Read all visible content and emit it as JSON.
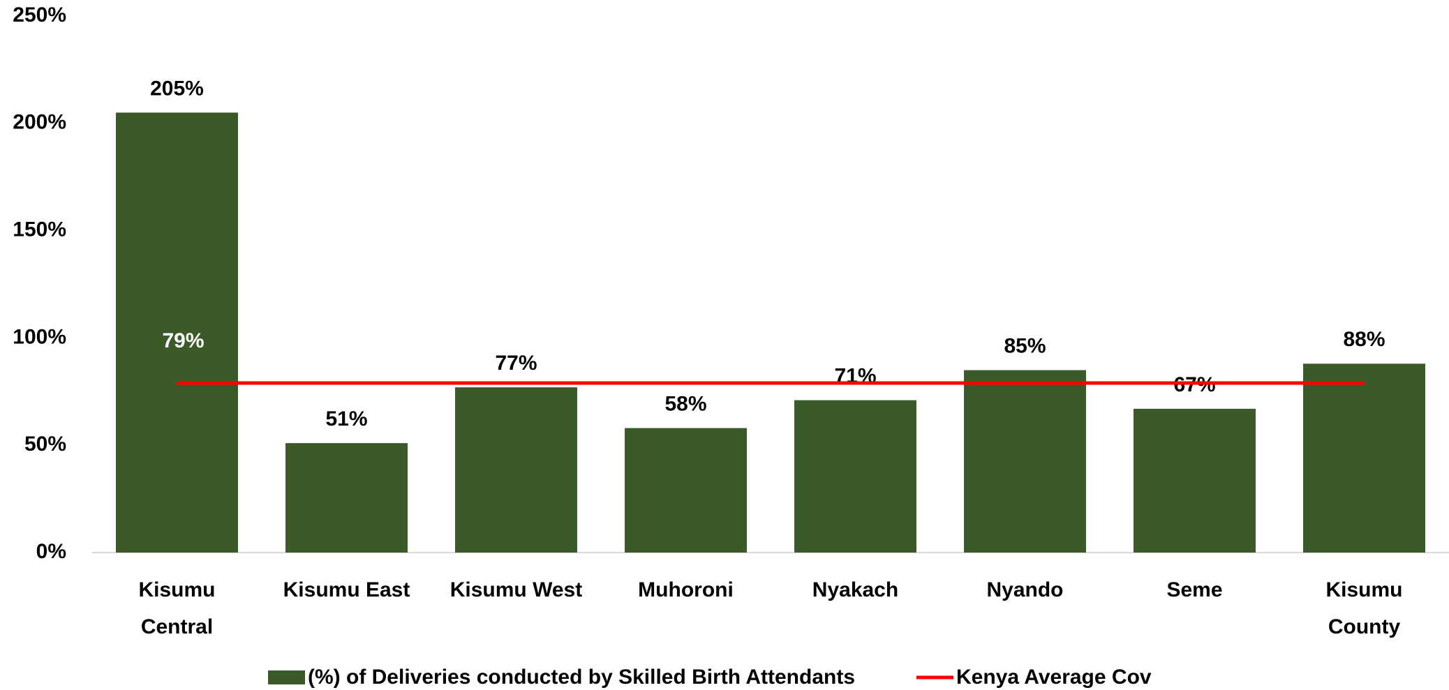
{
  "chart_data": {
    "type": "bar",
    "categories": [
      "Kisumu\nCentral",
      "Kisumu East",
      "Kisumu West",
      "Muhoroni",
      "Nyakach",
      "Nyando",
      "Seme",
      "Kisumu\nCounty"
    ],
    "series": [
      {
        "name": "(%) of Deliveries conducted by Skilled Birth Attendants",
        "type": "bar",
        "color": "#3b5a27",
        "values": [
          205,
          51,
          77,
          58,
          71,
          85,
          67,
          88
        ],
        "value_labels": [
          "205%",
          "51%",
          "77%",
          "58%",
          "71%",
          "85%",
          "67%",
          "88%"
        ]
      },
      {
        "name": "Kenya Average Cov",
        "type": "line",
        "color": "#ff0000",
        "values": [
          79,
          79,
          79,
          79,
          79,
          79,
          79,
          79
        ],
        "value_labels": [
          "79%",
          null,
          null,
          null,
          null,
          null,
          null,
          null
        ]
      }
    ],
    "ylim": [
      0,
      250
    ],
    "yticks": [
      {
        "value": 0,
        "label": "0%"
      },
      {
        "value": 50,
        "label": "50%"
      },
      {
        "value": 100,
        "label": "100%"
      },
      {
        "value": 150,
        "label": "150%"
      },
      {
        "value": 200,
        "label": "200%"
      },
      {
        "value": 250,
        "label": "250%"
      }
    ],
    "grid": false,
    "legend": "bottom"
  }
}
